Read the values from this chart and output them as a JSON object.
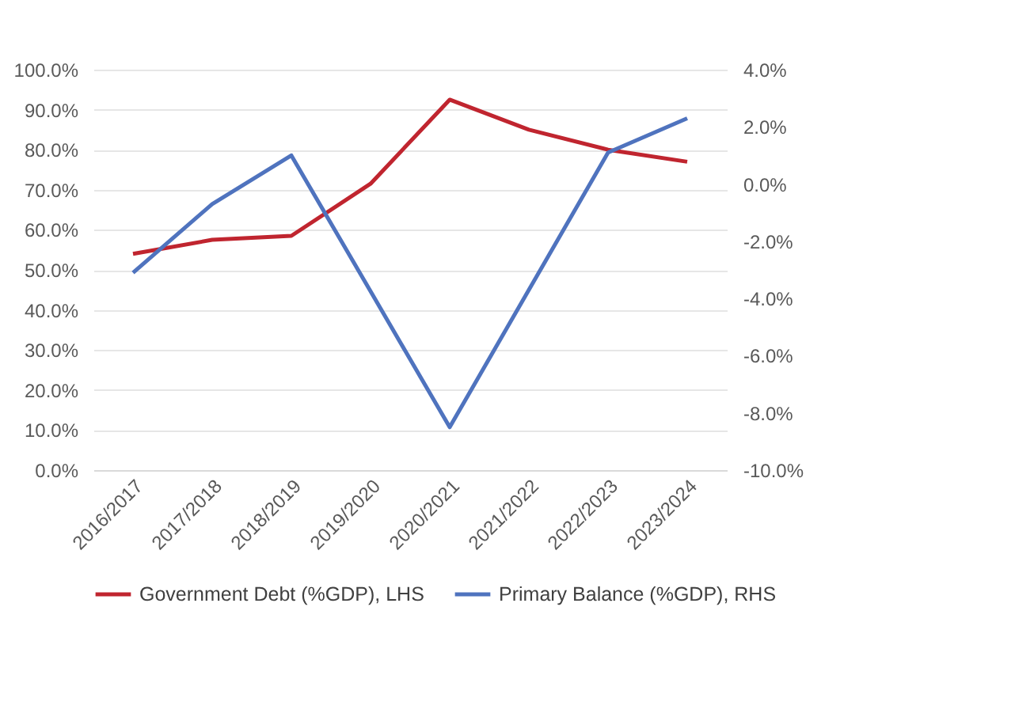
{
  "chart_data": {
    "type": "line",
    "categories": [
      "2016/2017",
      "2017/2018",
      "2018/2019",
      "2019/2020",
      "2020/2021",
      "2021/2022",
      "2022/2023",
      "2023/2024"
    ],
    "series": [
      {
        "name": "Government Debt (%GDP), LHS",
        "color": "#c0252f",
        "values": [
          54,
          57.5,
          58.5,
          71.5,
          92.5,
          85,
          80,
          77
        ]
      },
      {
        "name": "Primary Balance (%GDP), RHS",
        "color": "#4f73be",
        "axis": "y2",
        "values": [
          -3.1,
          -0.7,
          1.0,
          -3.75,
          -8.5,
          -3.7,
          1.1,
          2.3
        ]
      }
    ],
    "ylim": [
      0,
      100
    ],
    "yticks": [
      {
        "value": 0,
        "label": "0.0%"
      },
      {
        "value": 10,
        "label": "10.0%"
      },
      {
        "value": 20,
        "label": "20.0%"
      },
      {
        "value": 30,
        "label": "30.0%"
      },
      {
        "value": 40,
        "label": "40.0%"
      },
      {
        "value": 50,
        "label": "50.0%"
      },
      {
        "value": 60,
        "label": "60.0%"
      },
      {
        "value": 70,
        "label": "70.0%"
      },
      {
        "value": 80,
        "label": "80.0%"
      },
      {
        "value": 90,
        "label": "90.0%"
      },
      {
        "value": 100,
        "label": "100.0%"
      }
    ],
    "y2lim": [
      -10,
      4
    ],
    "y2ticks": [
      {
        "value": -10,
        "label": "-10.0%"
      },
      {
        "value": -8,
        "label": "-8.0%"
      },
      {
        "value": -6,
        "label": "-6.0%"
      },
      {
        "value": -4,
        "label": "-4.0%"
      },
      {
        "value": -2,
        "label": "-2.0%"
      },
      {
        "value": 0,
        "label": "0.0%"
      },
      {
        "value": 2,
        "label": "2.0%"
      },
      {
        "value": 4,
        "label": "4.0%"
      }
    ],
    "grid": "y",
    "legend": "bottom",
    "marker": "none",
    "line_style": "solid"
  }
}
